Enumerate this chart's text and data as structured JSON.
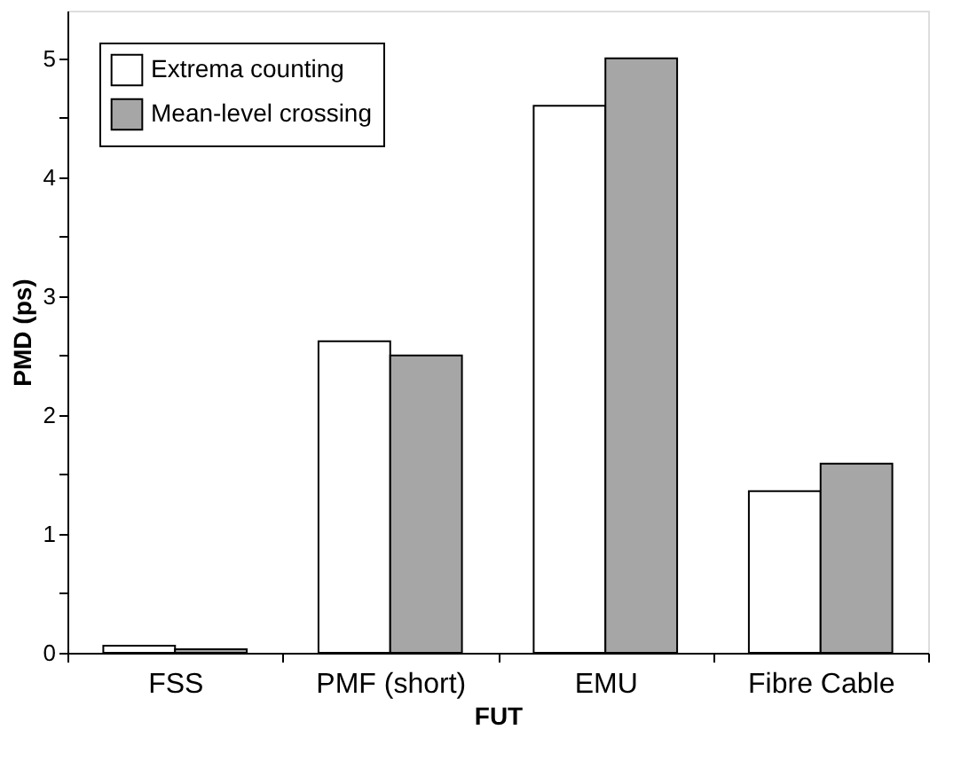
{
  "chart_data": {
    "type": "bar",
    "xlabel": "FUT",
    "ylabel": "PMD (ps)",
    "categories": [
      "FSS",
      "PMF (short)",
      "EMU",
      "Fibre Cable"
    ],
    "series": [
      {
        "name": "Extrema counting",
        "color": "#ffffff",
        "values": [
          0.06,
          2.62,
          4.6,
          1.36
        ]
      },
      {
        "name": "Mean-level crossing",
        "color": "#a6a6a6",
        "values": [
          0.03,
          2.5,
          5.0,
          1.59
        ]
      }
    ],
    "ylim": [
      0,
      5.4
    ],
    "yticks": [
      0,
      {
        "value": 0.5,
        "label": null
      },
      1,
      {
        "value": 1.5,
        "label": null
      },
      2,
      {
        "value": 2.5,
        "label": null
      },
      3,
      {
        "value": 3.5,
        "label": null
      },
      4,
      {
        "value": 4.5,
        "label": null
      },
      5
    ],
    "grid": false,
    "legend": "top left"
  }
}
